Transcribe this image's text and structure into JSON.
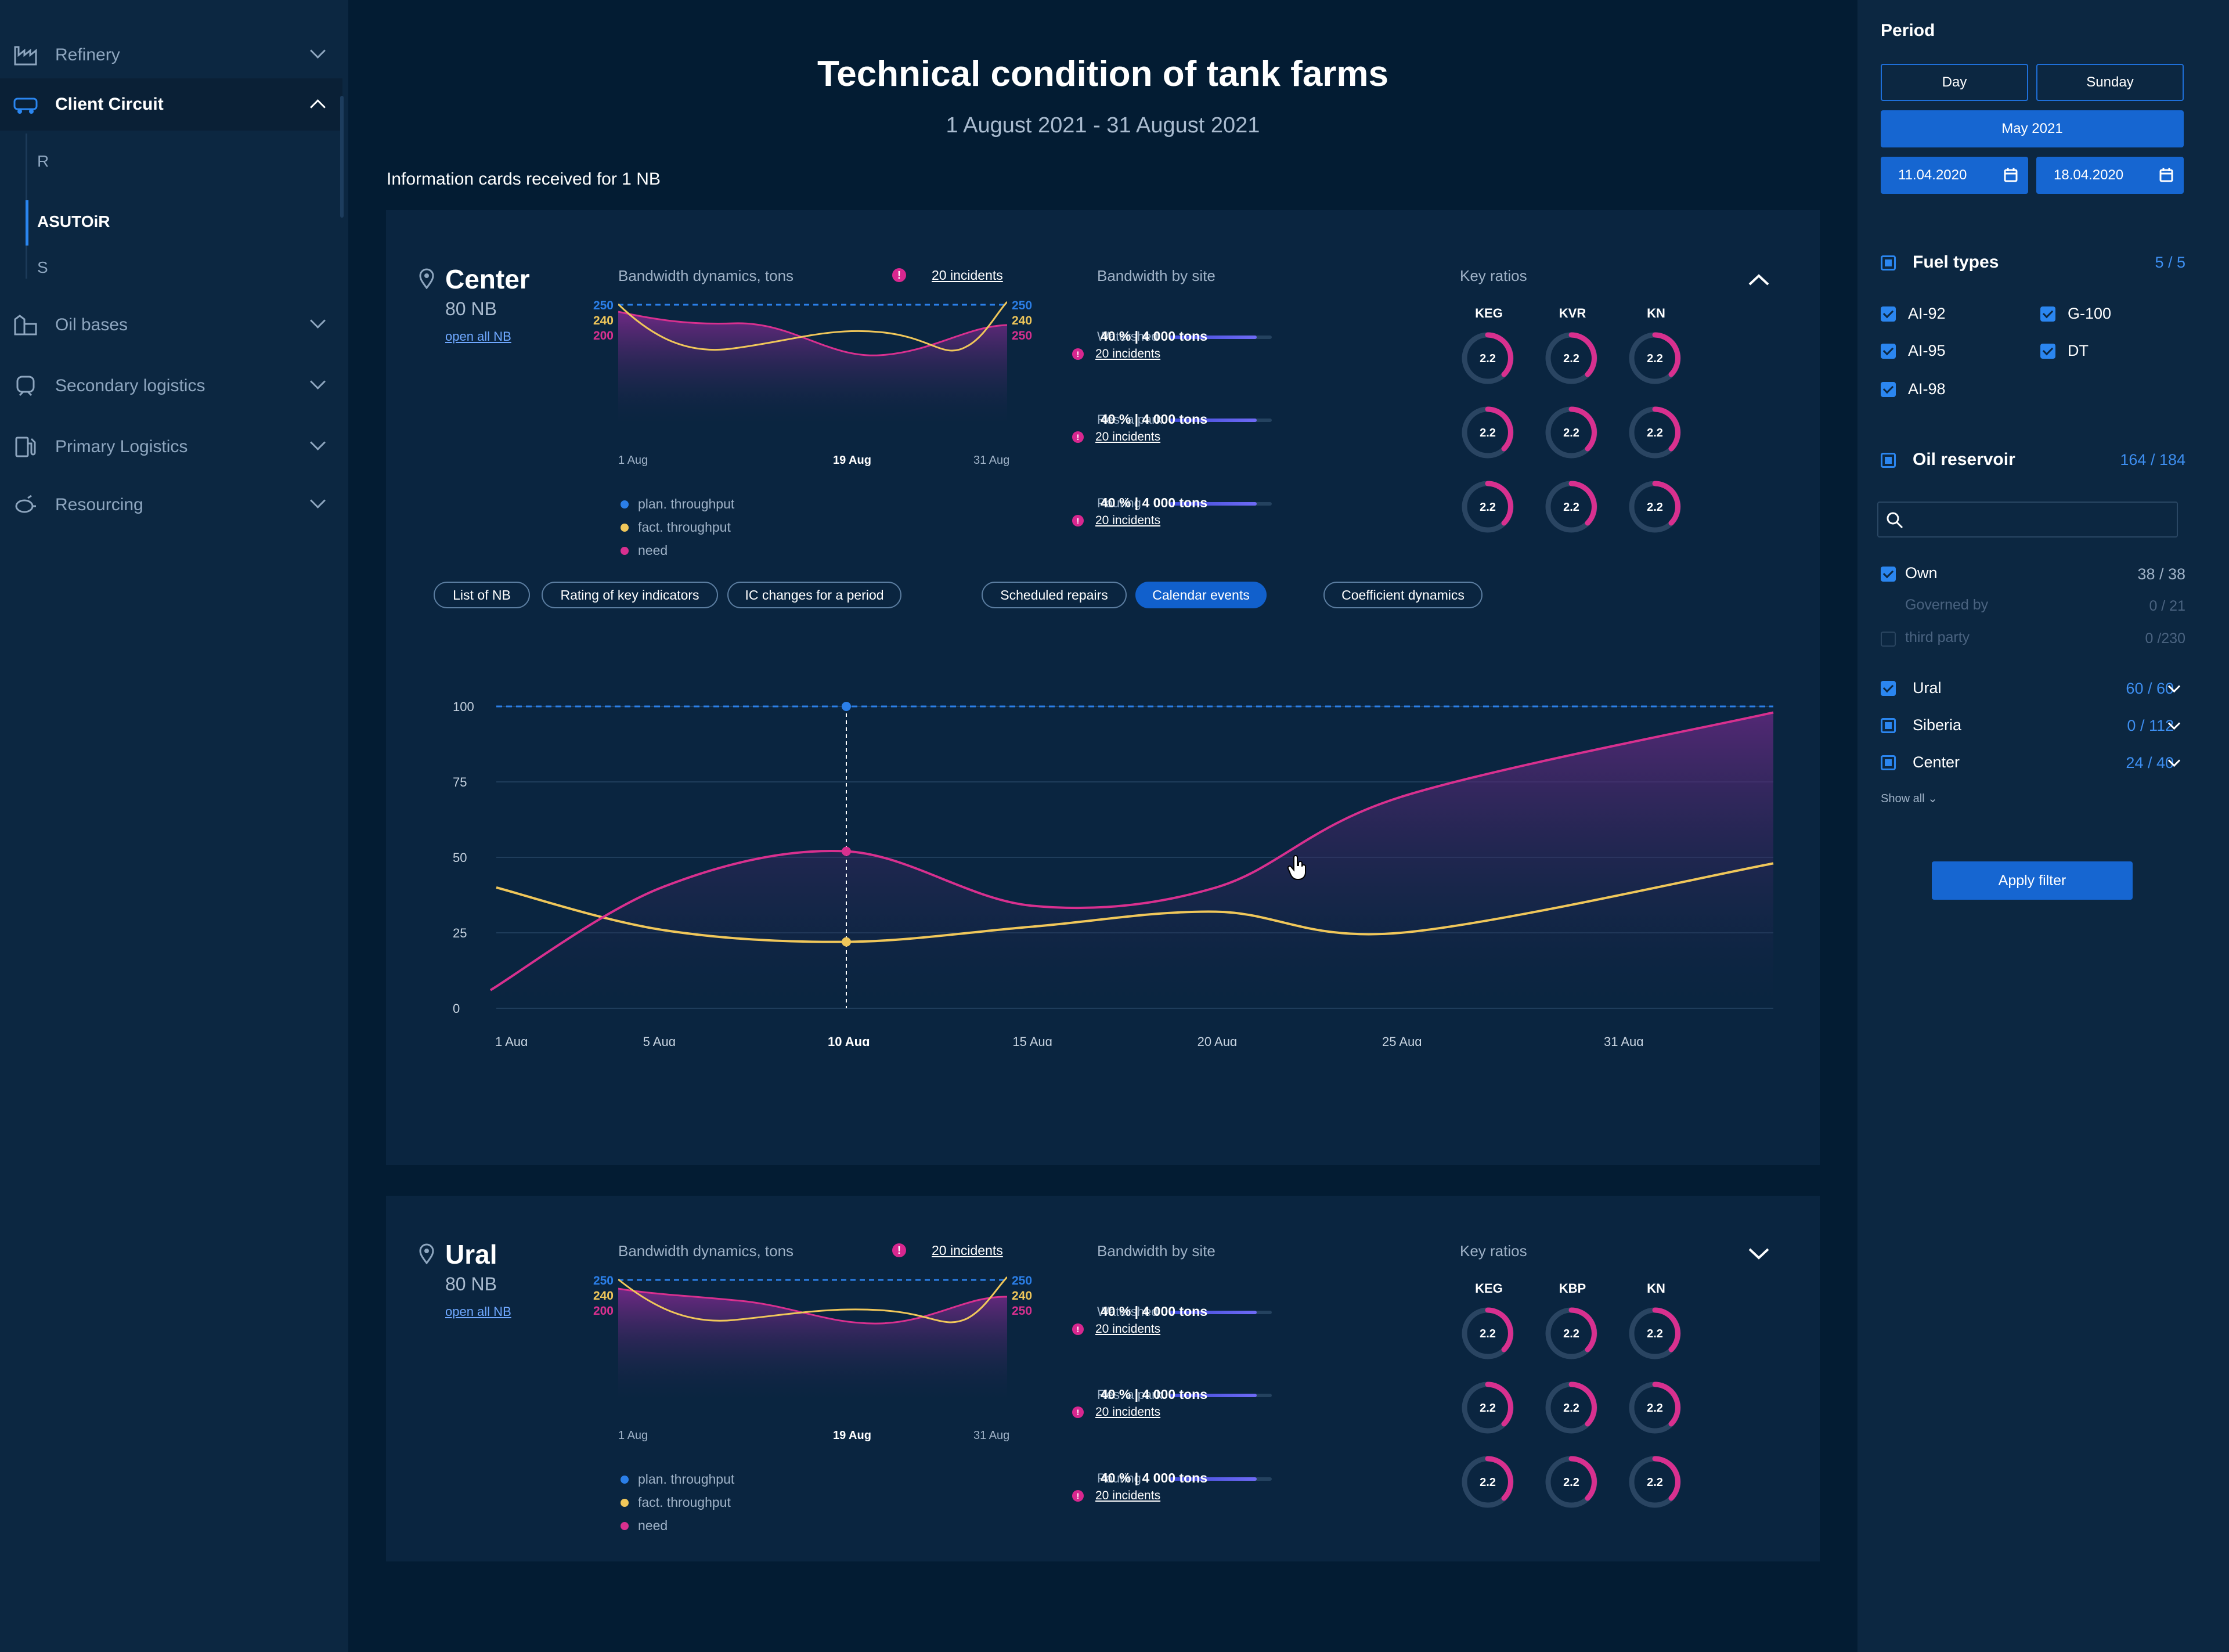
{
  "sidebar": {
    "items": [
      {
        "label": "Refinery",
        "icon": "factory-icon"
      },
      {
        "label": "Client Circuit",
        "icon": "truck-icon"
      },
      {
        "label": "Oil bases",
        "icon": "storage-icon"
      },
      {
        "label": "Secondary logistics",
        "icon": "train-icon"
      },
      {
        "label": "Primary Logistics",
        "icon": "fuel-pump-icon"
      },
      {
        "label": "Resourcing",
        "icon": "tanker-icon"
      }
    ],
    "subitems": [
      "R",
      "ASUTOiR",
      "S"
    ]
  },
  "header": {
    "title": "Technical condition of tank farms",
    "subtitle": "1 August 2021 - 31 August 2021",
    "info": "Information cards received for 1 NB"
  },
  "cards": [
    {
      "name": "Center",
      "count": "80 NB",
      "link": "open all NB",
      "bandwidth_title": "Bandwidth dynamics, tons",
      "incidents": "20 incidents",
      "ticks_left": [
        "250",
        "240",
        "200"
      ],
      "ticks_right": [
        "250",
        "240",
        "250"
      ],
      "x_labels": [
        "1 Aug",
        "19 Aug",
        "31 Aug"
      ],
      "legend": [
        "plan. throughput",
        "fact. throughput",
        "need"
      ],
      "site_title": "Bandwidth by site",
      "sites": [
        {
          "name": "Watershed",
          "value": "40 % | 4 000 tons",
          "incidents": "20 incidents"
        },
        {
          "name": "Res. a park",
          "value": "40 % | 4 000 tons",
          "incidents": "20 incidents"
        },
        {
          "name": "Pouring",
          "value": "40 % | 4 000 tons",
          "incidents": "20 incidents"
        }
      ],
      "ratios_title": "Key ratios",
      "ratio_headers": [
        "KEG",
        "KVR",
        "KN"
      ],
      "ratio_value": "2.2"
    },
    {
      "name": "Ural",
      "count": "80 NB",
      "link": "open all NB",
      "bandwidth_title": "Bandwidth dynamics, tons",
      "incidents": "20 incidents",
      "ticks_left": [
        "250",
        "240",
        "200"
      ],
      "ticks_right": [
        "250",
        "240",
        "250"
      ],
      "x_labels": [
        "1 Aug",
        "19 Aug",
        "31 Aug"
      ],
      "legend": [
        "plan. throughput",
        "fact. throughput",
        "need"
      ],
      "site_title": "Bandwidth by site",
      "sites": [
        {
          "name": "Watershed",
          "value": "40 % | 4 000 tons",
          "incidents": "20 incidents"
        },
        {
          "name": "Res. a park",
          "value": "40 % | 4 000 tons",
          "incidents": "20 incidents"
        },
        {
          "name": "Pouring",
          "value": "40 % | 4 000 tons",
          "incidents": "20 incidents"
        }
      ],
      "ratios_title": "Key ratios",
      "ratio_headers": [
        "KEG",
        "KBP",
        "KN"
      ],
      "ratio_value": "2.2"
    }
  ],
  "tabs": [
    "List of NB",
    "Rating of key indicators",
    "IC changes for a period",
    "Scheduled repairs",
    "Calendar events",
    "Coefficient dynamics"
  ],
  "colors": {
    "plan": "#2b7fe8",
    "fact": "#f0c75a",
    "need": "#d8308f",
    "accent": "#1666d1"
  },
  "chart_data": {
    "type": "area",
    "x": [
      "1 Aug",
      "5 Aug",
      "10 Aug",
      "15 Aug",
      "20 Aug",
      "25 Aug",
      "31 Aug"
    ],
    "ylim": [
      0,
      100
    ],
    "y_ticks": [
      "100",
      "75",
      "50",
      "25",
      "0"
    ],
    "series": [
      {
        "name": "plan. throughput",
        "values": [
          100,
          100,
          100,
          100,
          100,
          100,
          100
        ]
      },
      {
        "name": "fact. throughput",
        "values": [
          40,
          26,
          22,
          27,
          32,
          25,
          48
        ]
      },
      {
        "name": "need",
        "values": [
          6,
          40,
          52,
          34,
          40,
          70,
          98
        ]
      }
    ],
    "highlight_x": "10 Aug",
    "legend": "bottom-left"
  },
  "filter": {
    "period_title": "Period",
    "day": "Day",
    "sunday": "Sunday",
    "month": "May 2021",
    "date_from": "11.04.2020",
    "date_to": "18.04.2020",
    "fuel_title": "Fuel types",
    "fuel_count": "5 / 5",
    "fuels": [
      "AI-92",
      "G-100",
      "AI-95",
      "DT",
      "AI-98"
    ],
    "reservoir_title": "Oil reservoir",
    "reservoir_count": "164 / 184",
    "search_placeholder": "",
    "ownership": [
      {
        "label": "Own",
        "count": "38 / 38"
      },
      {
        "label": "Governed by",
        "count": "0 / 21"
      },
      {
        "label": "third party",
        "count": "0 /230"
      }
    ],
    "regions": [
      {
        "label": "Ural",
        "count": "60 / 60"
      },
      {
        "label": "Siberia",
        "count": "0 / 112"
      },
      {
        "label": "Center",
        "count": "24 / 40"
      }
    ],
    "show_all": "Show all",
    "apply": "Apply filter"
  }
}
